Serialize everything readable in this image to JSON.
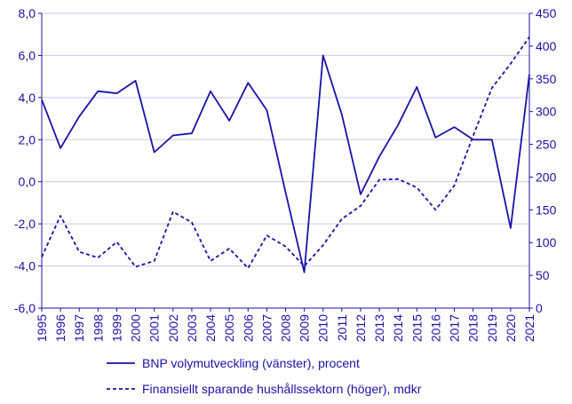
{
  "chart_data": {
    "type": "line",
    "title": "",
    "x": [
      "1995",
      "1996",
      "1997",
      "1998",
      "1999",
      "2000",
      "2001",
      "2002",
      "2003",
      "2004",
      "2005",
      "2006",
      "2007",
      "2008",
      "2009",
      "2010",
      "2011",
      "2012",
      "2013",
      "2014",
      "2015",
      "2016",
      "2017",
      "2018",
      "2019",
      "2020",
      "2021"
    ],
    "series": [
      {
        "name": "BNP volymutveckling (vänster), procent",
        "axis": "left",
        "style": "solid",
        "values": [
          3.9,
          1.6,
          3.1,
          4.3,
          4.2,
          4.8,
          1.4,
          2.2,
          2.3,
          4.3,
          2.9,
          4.7,
          3.4,
          -0.5,
          -4.3,
          6.0,
          3.2,
          -0.6,
          1.2,
          2.7,
          4.5,
          2.1,
          2.6,
          2.0,
          2.0,
          -2.2,
          5.1
        ]
      },
      {
        "name": "Finansiellt sparande hushållssektorn (höger), mdkr",
        "axis": "right",
        "style": "dashed",
        "values": [
          78,
          141,
          86,
          77,
          101,
          63,
          72,
          147,
          131,
          72,
          91,
          61,
          111,
          94,
          64,
          96,
          136,
          156,
          196,
          197,
          184,
          150,
          187,
          263,
          336,
          373,
          414
        ]
      }
    ],
    "y_left": {
      "range": [
        -6,
        8
      ],
      "ticks": [
        "-6,0",
        "-4,0",
        "-2,0",
        "0,0",
        "2,0",
        "4,0",
        "6,0",
        "8,0"
      ]
    },
    "y_right": {
      "range": [
        0,
        450
      ],
      "ticks": [
        "0",
        "50",
        "100",
        "150",
        "200",
        "250",
        "300",
        "350",
        "400",
        "450"
      ]
    },
    "grid": true,
    "legend_placement": "bottom",
    "colors": {
      "line": "#1a12a6",
      "grid": "#c9c9e6",
      "text": "#1a12a6"
    }
  }
}
